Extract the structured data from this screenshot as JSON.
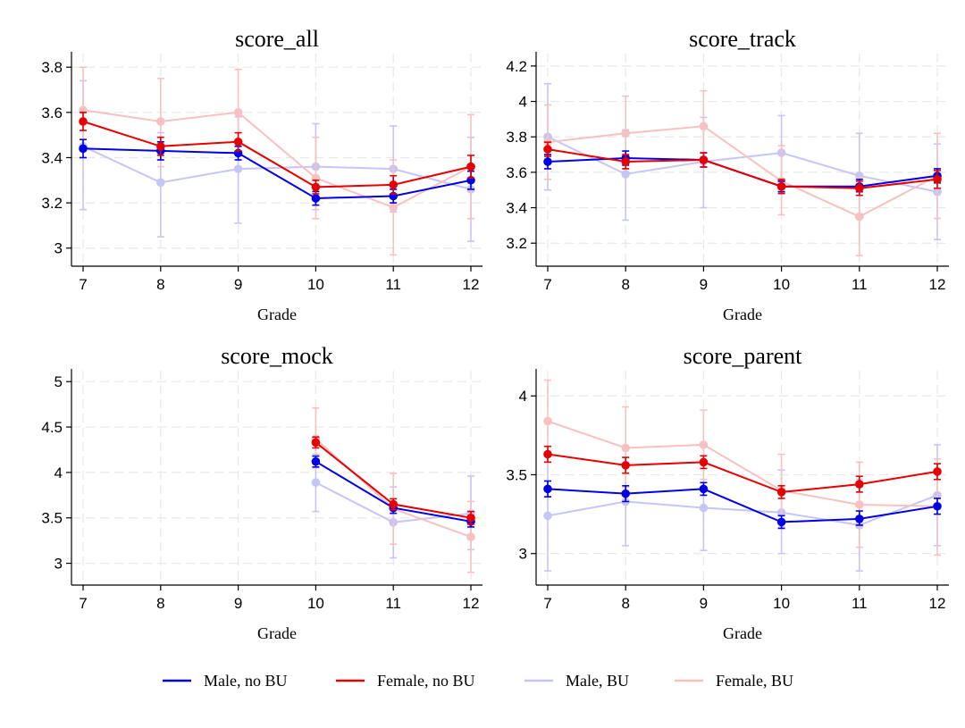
{
  "colors": {
    "male_no_bu": "#0000e6",
    "female_no_bu": "#e60000",
    "male_bu": "#c6c6f5",
    "female_bu": "#f7c1c1"
  },
  "legend": [
    {
      "label": "Male, no BU",
      "color": "#0000e6"
    },
    {
      "label": "Female, no BU",
      "color": "#e60000"
    },
    {
      "label": "Male, BU",
      "color": "#c6c6f5"
    },
    {
      "label": "Female, BU",
      "color": "#f7c1c1"
    }
  ],
  "chart_data": [
    {
      "type": "line",
      "title": "score_all",
      "xlabel": "Grade",
      "ylabel": "",
      "x": [
        7,
        8,
        9,
        10,
        11,
        12
      ],
      "xlim": [
        7,
        12
      ],
      "ylim": [
        2.92,
        3.86
      ],
      "yticks": [
        3,
        3.2,
        3.4,
        3.6,
        3.8
      ],
      "ytick_labels": [
        "3",
        "3.2",
        "3.4",
        "3.6",
        "3.8"
      ],
      "grid": true,
      "series": [
        {
          "name": "Male, BU",
          "values": [
            3.45,
            3.29,
            3.35,
            3.36,
            3.35,
            3.26
          ],
          "lo": [
            3.17,
            3.05,
            3.11,
            3.17,
            3.16,
            3.03
          ],
          "hi": [
            3.74,
            3.51,
            3.58,
            3.55,
            3.54,
            3.49
          ]
        },
        {
          "name": "Female, BU",
          "values": [
            3.61,
            3.56,
            3.6,
            3.31,
            3.18,
            3.36
          ],
          "lo": [
            3.43,
            3.36,
            3.41,
            3.13,
            2.97,
            3.13
          ],
          "hi": [
            3.8,
            3.75,
            3.79,
            3.49,
            3.39,
            3.59
          ]
        },
        {
          "name": "Male, no BU",
          "values": [
            3.44,
            3.43,
            3.42,
            3.22,
            3.23,
            3.3
          ],
          "lo": [
            3.4,
            3.39,
            3.39,
            3.19,
            3.2,
            3.26
          ],
          "hi": [
            3.48,
            3.47,
            3.45,
            3.25,
            3.26,
            3.34
          ]
        },
        {
          "name": "Female, no BU",
          "values": [
            3.56,
            3.45,
            3.47,
            3.27,
            3.28,
            3.36
          ],
          "lo": [
            3.52,
            3.41,
            3.43,
            3.24,
            3.24,
            3.31
          ],
          "hi": [
            3.6,
            3.49,
            3.51,
            3.3,
            3.32,
            3.41
          ]
        }
      ]
    },
    {
      "type": "line",
      "title": "score_track",
      "xlabel": "Grade",
      "ylabel": "",
      "x": [
        7,
        8,
        9,
        10,
        11,
        12
      ],
      "xlim": [
        7,
        12
      ],
      "ylim": [
        3.07,
        4.27
      ],
      "yticks": [
        3.2,
        3.4,
        3.6,
        3.8,
        4,
        4.2
      ],
      "ytick_labels": [
        "3.2",
        "3.4",
        "3.6",
        "3.8",
        "4",
        "4.2"
      ],
      "grid": true,
      "series": [
        {
          "name": "Male, BU",
          "values": [
            3.8,
            3.59,
            3.66,
            3.71,
            3.58,
            3.49
          ],
          "lo": [
            3.5,
            3.33,
            3.4,
            3.5,
            3.34,
            3.22
          ],
          "hi": [
            4.1,
            3.84,
            3.91,
            3.92,
            3.82,
            3.76
          ]
        },
        {
          "name": "Female, BU",
          "values": [
            3.77,
            3.82,
            3.86,
            3.55,
            3.35,
            3.58
          ],
          "lo": [
            3.56,
            3.62,
            3.67,
            3.36,
            3.13,
            3.34
          ],
          "hi": [
            3.98,
            4.03,
            4.06,
            3.75,
            3.57,
            3.82
          ]
        },
        {
          "name": "Male, no BU",
          "values": [
            3.66,
            3.68,
            3.67,
            3.52,
            3.52,
            3.58
          ],
          "lo": [
            3.62,
            3.64,
            3.63,
            3.49,
            3.49,
            3.54
          ],
          "hi": [
            3.7,
            3.72,
            3.71,
            3.55,
            3.56,
            3.62
          ]
        },
        {
          "name": "Female, no BU",
          "values": [
            3.73,
            3.66,
            3.67,
            3.52,
            3.51,
            3.56
          ],
          "lo": [
            3.69,
            3.62,
            3.63,
            3.48,
            3.47,
            3.51
          ],
          "hi": [
            3.77,
            3.7,
            3.71,
            3.56,
            3.55,
            3.61
          ]
        }
      ]
    },
    {
      "type": "line",
      "title": "score_mock",
      "xlabel": "Grade",
      "ylabel": "",
      "x": [
        7,
        8,
        9,
        10,
        11,
        12
      ],
      "xlim": [
        7,
        12
      ],
      "ylim": [
        2.76,
        5.12
      ],
      "yticks": [
        3,
        3.5,
        4,
        4.5,
        5
      ],
      "ytick_labels": [
        "3",
        "3.5",
        "4",
        "4.5",
        "5"
      ],
      "grid": true,
      "series": [
        {
          "name": "Male, BU",
          "values": [
            null,
            null,
            null,
            3.89,
            3.45,
            3.55
          ],
          "lo": [
            null,
            null,
            null,
            3.57,
            3.06,
            3.15
          ],
          "hi": [
            null,
            null,
            null,
            4.2,
            3.84,
            3.96
          ]
        },
        {
          "name": "Female, BU",
          "values": [
            null,
            null,
            null,
            4.37,
            3.6,
            3.29
          ],
          "lo": [
            null,
            null,
            null,
            4.05,
            3.21,
            2.9
          ],
          "hi": [
            null,
            null,
            null,
            4.71,
            3.99,
            3.68
          ]
        },
        {
          "name": "Male, no BU",
          "values": [
            null,
            null,
            null,
            4.12,
            3.61,
            3.46
          ],
          "lo": [
            null,
            null,
            null,
            4.06,
            3.55,
            3.4
          ],
          "hi": [
            null,
            null,
            null,
            4.18,
            3.67,
            3.52
          ]
        },
        {
          "name": "Female, no BU",
          "values": [
            null,
            null,
            null,
            4.33,
            3.65,
            3.5
          ],
          "lo": [
            null,
            null,
            null,
            4.27,
            3.59,
            3.43
          ],
          "hi": [
            null,
            null,
            null,
            4.39,
            3.71,
            3.57
          ]
        }
      ]
    },
    {
      "type": "line",
      "title": "score_parent",
      "xlabel": "Grade",
      "ylabel": "",
      "x": [
        7,
        8,
        9,
        10,
        11,
        12
      ],
      "xlim": [
        7,
        12
      ],
      "ylim": [
        2.8,
        4.16
      ],
      "yticks": [
        3,
        3.5,
        4
      ],
      "ytick_labels": [
        "3",
        "3.5",
        "4"
      ],
      "grid": true,
      "series": [
        {
          "name": "Male, BU",
          "values": [
            3.24,
            3.33,
            3.29,
            3.26,
            3.18,
            3.37
          ],
          "lo": [
            2.89,
            3.05,
            3.02,
            3.0,
            2.89,
            3.05
          ],
          "hi": [
            3.58,
            3.61,
            3.56,
            3.53,
            3.47,
            3.69
          ]
        },
        {
          "name": "Female, BU",
          "values": [
            3.84,
            3.67,
            3.69,
            3.4,
            3.31,
            3.3
          ],
          "lo": [
            3.58,
            3.42,
            3.47,
            3.17,
            3.04,
            2.99
          ],
          "hi": [
            4.1,
            3.93,
            3.91,
            3.63,
            3.58,
            3.6
          ]
        },
        {
          "name": "Male, no BU",
          "values": [
            3.41,
            3.38,
            3.41,
            3.2,
            3.22,
            3.3
          ],
          "lo": [
            3.36,
            3.33,
            3.37,
            3.16,
            3.18,
            3.25
          ],
          "hi": [
            3.46,
            3.43,
            3.45,
            3.24,
            3.27,
            3.35
          ]
        },
        {
          "name": "Female, no BU",
          "values": [
            3.63,
            3.56,
            3.58,
            3.39,
            3.44,
            3.52
          ],
          "lo": [
            3.58,
            3.51,
            3.54,
            3.35,
            3.39,
            3.47
          ],
          "hi": [
            3.68,
            3.61,
            3.62,
            3.43,
            3.49,
            3.57
          ]
        }
      ]
    }
  ]
}
